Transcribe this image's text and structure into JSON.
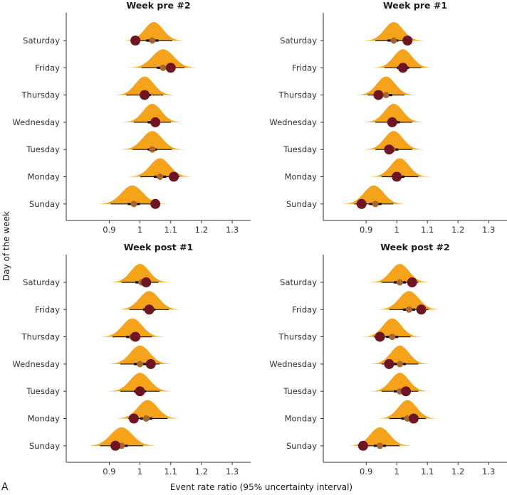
{
  "figure": {
    "y_axis_title": "Day of the week",
    "x_axis_title": "Event rate ratio (95% uncertainty interval)",
    "panel_letter": "A"
  },
  "colors": {
    "distribution": "#f5a31a",
    "observed": "#6e1423",
    "estimate": "#a8662c",
    "interval": "#111111"
  },
  "chart_data": [
    {
      "type": "density-ridge",
      "title": "Week pre #2",
      "categories": [
        "Saturday",
        "Friday",
        "Thursday",
        "Wednesday",
        "Tuesday",
        "Monday",
        "Sunday"
      ],
      "x_ticks": [
        0.9,
        1.0,
        1.1,
        1.2,
        1.3
      ],
      "xlim": [
        0.76,
        1.36
      ],
      "rows": [
        {
          "day": "Saturday",
          "mode": 1.045,
          "sd": 0.03,
          "estimate": 1.04,
          "lower": 1.02,
          "upper": 1.06,
          "observed": 0.985
        },
        {
          "day": "Friday",
          "mode": 1.075,
          "sd": 0.035,
          "estimate": 1.075,
          "lower": 1.055,
          "upper": 1.095,
          "observed": 1.1
        },
        {
          "day": "Thursday",
          "mode": 1.015,
          "sd": 0.03,
          "estimate": 1.015,
          "lower": 1.0,
          "upper": 1.035,
          "observed": 1.015
        },
        {
          "day": "Wednesday",
          "mode": 1.04,
          "sd": 0.03,
          "estimate": 1.045,
          "lower": 1.025,
          "upper": 1.06,
          "observed": 1.05
        },
        {
          "day": "Tuesday",
          "mode": 1.04,
          "sd": 0.032,
          "estimate": 1.04,
          "lower": 1.025,
          "upper": 1.055,
          "observed": null
        },
        {
          "day": "Monday",
          "mode": 1.065,
          "sd": 0.032,
          "estimate": 1.065,
          "lower": 1.045,
          "upper": 1.085,
          "observed": 1.11
        },
        {
          "day": "Sunday",
          "mode": 0.975,
          "sd": 0.035,
          "estimate": 0.98,
          "lower": 0.96,
          "upper": 1.0,
          "observed": 1.05
        }
      ]
    },
    {
      "type": "density-ridge",
      "title": "Week pre #1",
      "categories": [
        "Saturday",
        "Friday",
        "Thursday",
        "Wednesday",
        "Tuesday",
        "Monday",
        "Sunday"
      ],
      "x_ticks": [
        0.9,
        1.0,
        1.1,
        1.2,
        1.3
      ],
      "xlim": [
        0.76,
        1.36
      ],
      "rows": [
        {
          "day": "Saturday",
          "mode": 0.99,
          "sd": 0.03,
          "estimate": 0.99,
          "lower": 0.97,
          "upper": 1.005,
          "observed": 1.035
        },
        {
          "day": "Friday",
          "mode": 1.02,
          "sd": 0.03,
          "estimate": 1.02,
          "lower": 1.0,
          "upper": 1.04,
          "observed": 1.02
        },
        {
          "day": "Thursday",
          "mode": 0.965,
          "sd": 0.03,
          "estimate": 0.965,
          "lower": 0.945,
          "upper": 0.985,
          "observed": 0.94
        },
        {
          "day": "Wednesday",
          "mode": 0.99,
          "sd": 0.03,
          "estimate": 0.99,
          "lower": 0.975,
          "upper": 1.01,
          "observed": 0.985
        },
        {
          "day": "Tuesday",
          "mode": 0.99,
          "sd": 0.03,
          "estimate": 0.985,
          "lower": 0.97,
          "upper": 1.005,
          "observed": 0.975
        },
        {
          "day": "Monday",
          "mode": 1.01,
          "sd": 0.03,
          "estimate": 1.005,
          "lower": 0.985,
          "upper": 1.025,
          "observed": 1.0
        },
        {
          "day": "Sunday",
          "mode": 0.925,
          "sd": 0.032,
          "estimate": 0.93,
          "lower": 0.91,
          "upper": 0.95,
          "observed": 0.885
        }
      ]
    },
    {
      "type": "density-ridge",
      "title": "Week post #1",
      "categories": [
        "Saturday",
        "Friday",
        "Thursday",
        "Wednesday",
        "Tuesday",
        "Monday",
        "Sunday"
      ],
      "x_ticks": [
        0.9,
        1.0,
        1.1,
        1.2,
        1.3
      ],
      "xlim": [
        0.76,
        1.36
      ],
      "rows": [
        {
          "day": "Saturday",
          "mode": 1.0,
          "sd": 0.03,
          "estimate": 1.005,
          "lower": 0.985,
          "upper": 1.025,
          "observed": 1.02
        },
        {
          "day": "Friday",
          "mode": 1.03,
          "sd": 0.032,
          "estimate": 1.03,
          "lower": 1.01,
          "upper": 1.05,
          "observed": 1.03
        },
        {
          "day": "Thursday",
          "mode": 0.975,
          "sd": 0.032,
          "estimate": 0.975,
          "lower": 0.955,
          "upper": 0.995,
          "observed": 0.985
        },
        {
          "day": "Wednesday",
          "mode": 1.0,
          "sd": 0.032,
          "estimate": 1.0,
          "lower": 0.98,
          "upper": 1.02,
          "observed": 1.035
        },
        {
          "day": "Tuesday",
          "mode": 1.0,
          "sd": 0.032,
          "estimate": 1.0,
          "lower": 0.98,
          "upper": 1.02,
          "observed": 1.0
        },
        {
          "day": "Monday",
          "mode": 1.025,
          "sd": 0.032,
          "estimate": 1.02,
          "lower": 1.0,
          "upper": 1.04,
          "observed": 0.98
        },
        {
          "day": "Sunday",
          "mode": 0.94,
          "sd": 0.035,
          "estimate": 0.94,
          "lower": 0.92,
          "upper": 0.96,
          "observed": 0.92
        }
      ]
    },
    {
      "type": "density-ridge",
      "title": "Week post #2",
      "categories": [
        "Saturday",
        "Friday",
        "Thursday",
        "Wednesday",
        "Tuesday",
        "Monday",
        "Sunday"
      ],
      "x_ticks": [
        0.9,
        1.0,
        1.1,
        1.2,
        1.3
      ],
      "xlim": [
        0.76,
        1.36
      ],
      "rows": [
        {
          "day": "Saturday",
          "mode": 1.01,
          "sd": 0.03,
          "estimate": 1.01,
          "lower": 0.99,
          "upper": 1.03,
          "observed": 1.05
        },
        {
          "day": "Friday",
          "mode": 1.04,
          "sd": 0.032,
          "estimate": 1.04,
          "lower": 1.02,
          "upper": 1.06,
          "observed": 1.08
        },
        {
          "day": "Thursday",
          "mode": 0.985,
          "sd": 0.03,
          "estimate": 0.985,
          "lower": 0.965,
          "upper": 1.005,
          "observed": 0.945
        },
        {
          "day": "Wednesday",
          "mode": 1.01,
          "sd": 0.03,
          "estimate": 1.01,
          "lower": 0.99,
          "upper": 1.03,
          "observed": 0.975
        },
        {
          "day": "Tuesday",
          "mode": 1.01,
          "sd": 0.03,
          "estimate": 1.01,
          "lower": 0.99,
          "upper": 1.03,
          "observed": 1.03
        },
        {
          "day": "Monday",
          "mode": 1.035,
          "sd": 0.03,
          "estimate": 1.035,
          "lower": 1.015,
          "upper": 1.055,
          "observed": 1.055
        },
        {
          "day": "Sunday",
          "mode": 0.945,
          "sd": 0.032,
          "estimate": 0.945,
          "lower": 0.925,
          "upper": 0.965,
          "observed": 0.89
        }
      ]
    }
  ]
}
